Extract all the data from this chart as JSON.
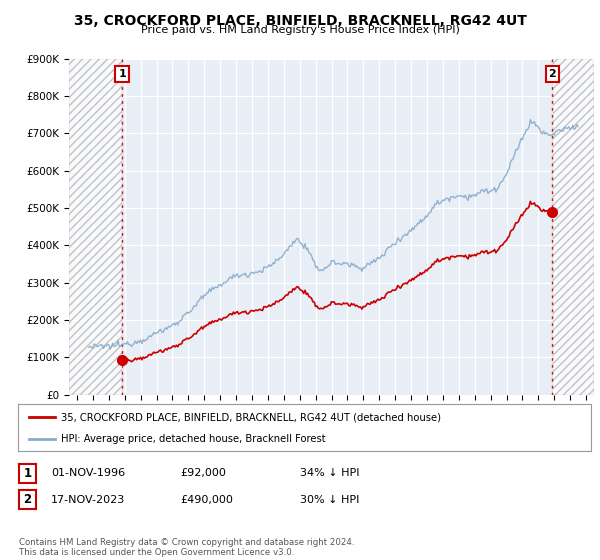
{
  "title": "35, CROCKFORD PLACE, BINFIELD, BRACKNELL, RG42 4UT",
  "subtitle": "Price paid vs. HM Land Registry's House Price Index (HPI)",
  "ylabel_values": [
    "£0",
    "£100K",
    "£200K",
    "£300K",
    "£400K",
    "£500K",
    "£600K",
    "£700K",
    "£800K",
    "£900K"
  ],
  "ylim": [
    0,
    900000
  ],
  "xlim_start": 1993.5,
  "xlim_end": 2026.5,
  "hatch_end_year": 1996.84,
  "hatch_start_year": 2023.9,
  "purchase1_year": 1996.84,
  "purchase1_price": 92000,
  "purchase2_year": 2023.88,
  "purchase2_price": 490000,
  "legend_line1": "35, CROCKFORD PLACE, BINFIELD, BRACKNELL, RG42 4UT (detached house)",
  "legend_line2": "HPI: Average price, detached house, Bracknell Forest",
  "table_row1": [
    "1",
    "01-NOV-1996",
    "£92,000",
    "34% ↓ HPI"
  ],
  "table_row2": [
    "2",
    "17-NOV-2023",
    "£490,000",
    "30% ↓ HPI"
  ],
  "footnote": "Contains HM Land Registry data © Crown copyright and database right 2024.\nThis data is licensed under the Open Government Licence v3.0.",
  "price_paid_color": "#cc0000",
  "hpi_color": "#88aacc",
  "grid_color": "#cccccc",
  "bg_color": "#ffffff",
  "plot_bg_color": "#e8eef5",
  "hpi_start_year": 1994.75,
  "hpi_end_year": 2025.5
}
